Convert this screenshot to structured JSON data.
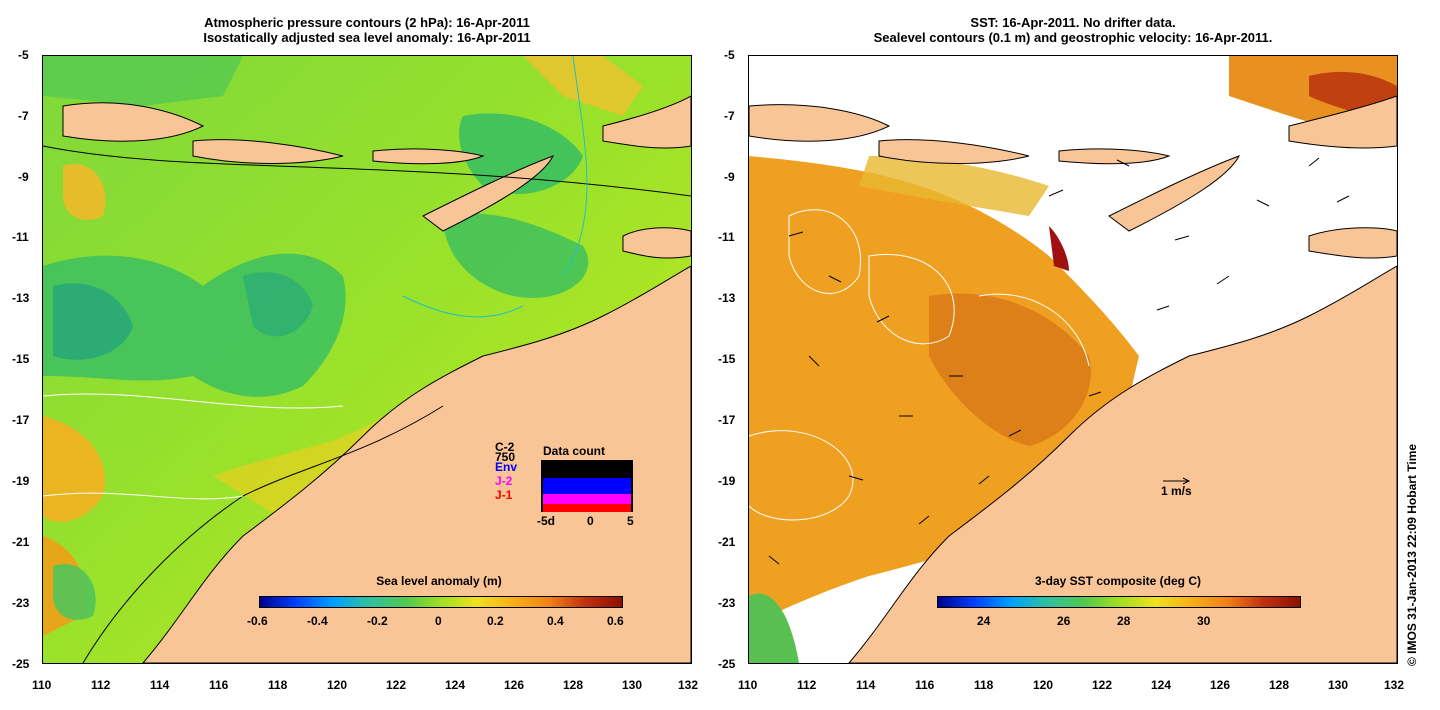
{
  "left_panel": {
    "title_line1": "Atmospheric pressure contours (2 hPa): 16-Apr-2011",
    "title_line2": "Isostatically adjusted sea level anomaly: 16-Apr-2011",
    "colorbar": {
      "label": "Sea level anomaly (m)",
      "ticks": [
        "-0.6",
        "-0.4",
        "-0.2",
        "0",
        "0.2",
        "0.4",
        "0.6"
      ]
    },
    "data_count": {
      "label": "Data count",
      "satellites": [
        {
          "name": "C-2",
          "color": "#000000"
        },
        {
          "name": "750",
          "color": "#000000"
        },
        {
          "name": "Env",
          "color": "#0000ff"
        },
        {
          "name": "J-2",
          "color": "#ff00ff"
        },
        {
          "name": "J-1",
          "color": "#ff0000"
        }
      ],
      "x_ticks": [
        "-5d",
        "0",
        "5"
      ]
    }
  },
  "right_panel": {
    "title_line1": "SST: 16-Apr-2011. No drifter data.",
    "title_line2": "Sealevel contours (0.1 m) and geostrophic velocity: 16-Apr-2011.",
    "colorbar": {
      "label": "3-day SST composite (deg C)",
      "ticks": [
        "24",
        "26",
        "28",
        "30"
      ]
    },
    "scale_label": "1 m/s"
  },
  "axes": {
    "lat_ticks": [
      "-5",
      "-7",
      "-9",
      "-11",
      "-13",
      "-15",
      "-17",
      "-19",
      "-21",
      "-23",
      "-25"
    ],
    "lon_ticks": [
      "110",
      "112",
      "114",
      "116",
      "118",
      "120",
      "122",
      "124",
      "126",
      "128",
      "130",
      "132"
    ]
  },
  "credit": "© IMOS 31-Jan-2013 22:09 Hobart Time",
  "colors": {
    "land": "#f9c596",
    "ocean_green": "#8fe02a",
    "sst_orange": "#f0a020"
  }
}
